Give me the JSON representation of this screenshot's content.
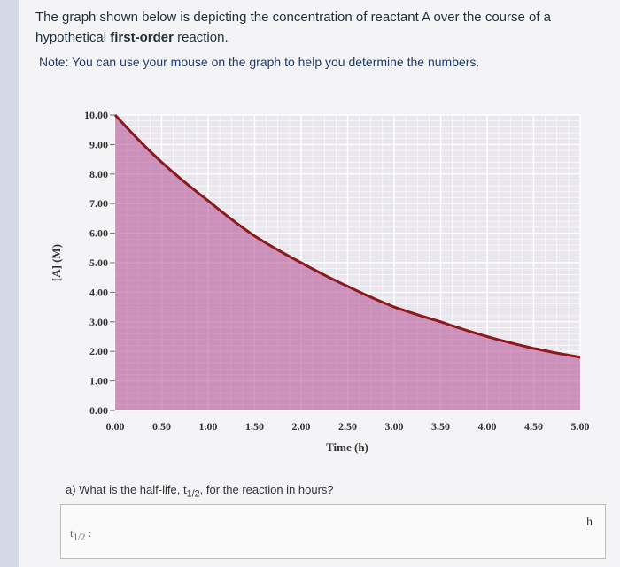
{
  "question": {
    "line_before": "The graph shown below is depicting the concentration of reactant A over the course of a hypothetical ",
    "bold": "first-order",
    "line_after": " reaction.",
    "note": "Note: You can use your mouse on the graph to help you determine the numbers."
  },
  "chart_data": {
    "type": "area",
    "title": "",
    "xlabel": "Time (h)",
    "ylabel": "[A] (M)",
    "xlim": [
      0,
      5.0
    ],
    "ylim": [
      0,
      10.0
    ],
    "x_ticks": [
      "0.00",
      "0.50",
      "1.00",
      "1.50",
      "2.00",
      "2.50",
      "3.00",
      "3.50",
      "4.00",
      "4.50",
      "5.00"
    ],
    "y_ticks": [
      "0.00",
      "1.00",
      "2.00",
      "3.00",
      "4.00",
      "5.00",
      "6.00",
      "7.00",
      "8.00",
      "9.00",
      "10.00"
    ],
    "series": [
      {
        "x": [
          0,
          0.5,
          1.0,
          1.5,
          2.0,
          2.5,
          3.0,
          3.5,
          4.0,
          4.5,
          5.0
        ],
        "y": [
          10.0,
          8.4,
          7.1,
          5.9,
          5.0,
          4.2,
          3.5,
          3.0,
          2.5,
          2.1,
          1.8
        ]
      }
    ],
    "grid": true,
    "colors": {
      "fill": "#b8589a",
      "line": "#8b1a1a",
      "grid": "#ffffff"
    }
  },
  "part_a": {
    "prefix": "a) What is the half-life, t",
    "sub": "1/2",
    "suffix": ", for the reaction in hours?"
  },
  "answer": {
    "label": "t",
    "label_sub": "1/2",
    "label_suffix": " :",
    "value": "",
    "unit": "h"
  }
}
